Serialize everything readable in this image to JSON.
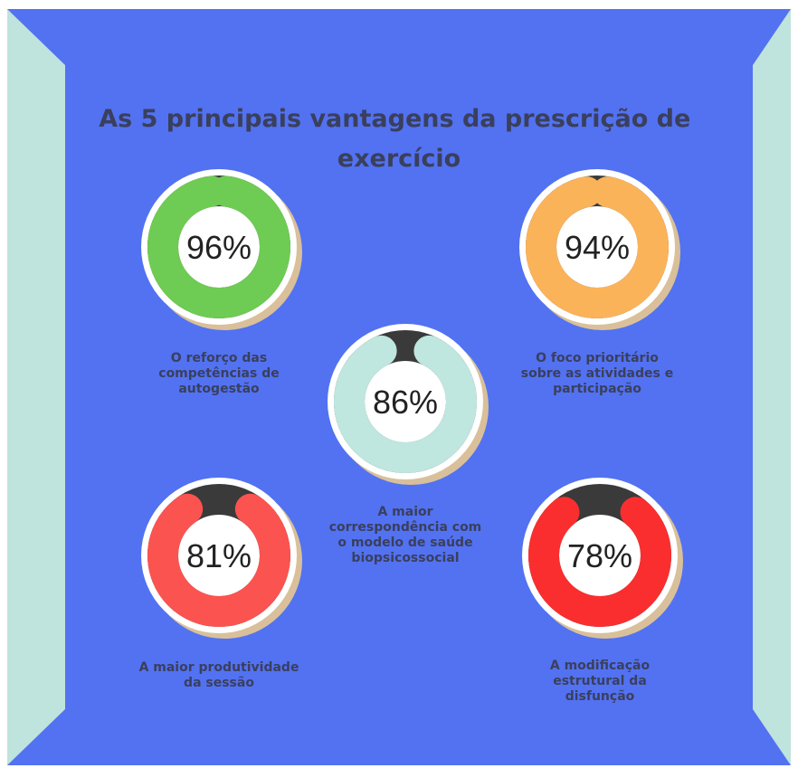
{
  "chart_data": {
    "type": "pie",
    "title_lines": [
      "As 5 principais vantagens da prescrição de",
      "exercício"
    ],
    "items": [
      {
        "value": 96,
        "label": "96%",
        "caption": [
          "O reforço das",
          "competências de",
          "autogestão"
        ],
        "color": "#6ecb53"
      },
      {
        "value": 94,
        "label": "94%",
        "caption": [
          "O foco prioritário",
          "sobre as atividades e",
          "participação"
        ],
        "color": "#fbb35a"
      },
      {
        "value": 86,
        "label": "86%",
        "caption": [
          "A maior",
          "correspondência com",
          "o modelo de saúde",
          "biopsicossocial"
        ],
        "color": "#bfe6df"
      },
      {
        "value": 81,
        "label": "81%",
        "caption": [
          "A maior produtividade",
          "da sessão"
        ],
        "color": "#fb5350"
      },
      {
        "value": 78,
        "label": "78%",
        "caption": [
          "A modificação",
          "estrutural da",
          "disfunção"
        ],
        "color": "#fa2e2f"
      }
    ]
  },
  "colors": {
    "background": "#5272f2",
    "side_panels": "#bfe3dd",
    "track": "#3a3a3a",
    "disc": "#ffffff",
    "disc_shadow": "#d9c09a",
    "text": "#3a3f5c"
  }
}
